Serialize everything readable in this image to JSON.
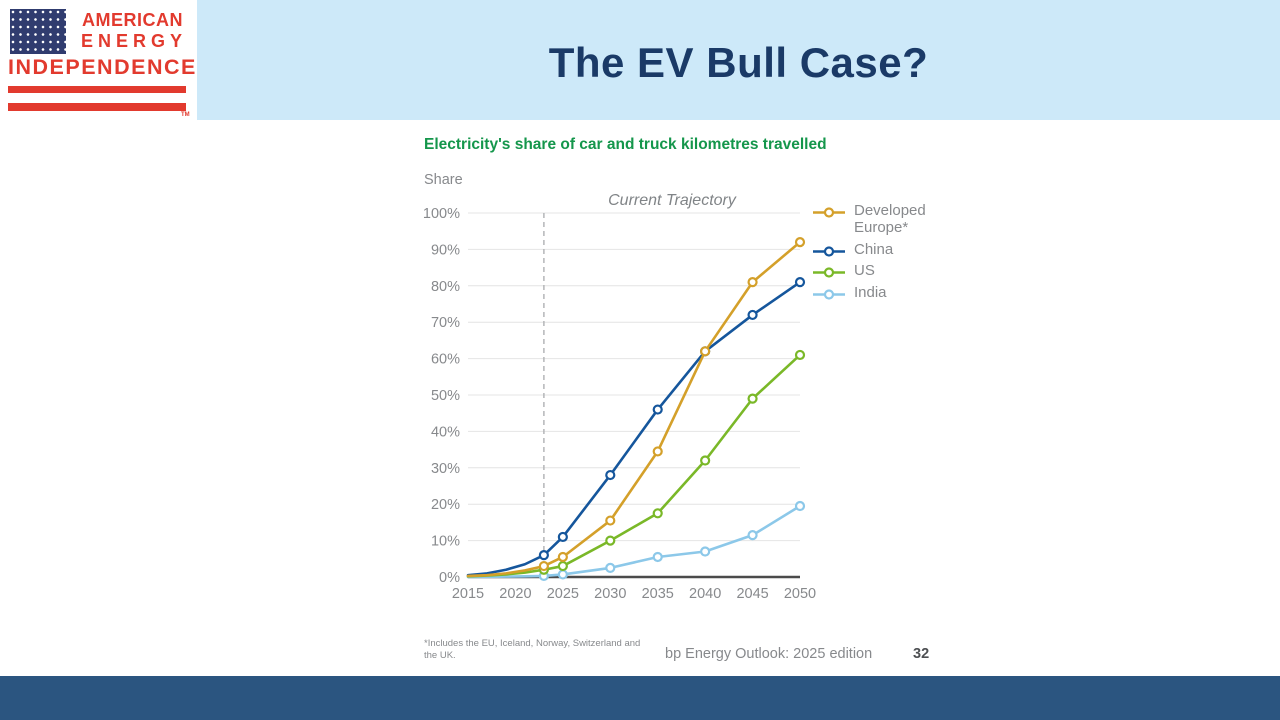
{
  "logo": {
    "line1": "AMERICAN",
    "line2": "ENERGY",
    "line3": "INDEPENDENCE",
    "tm": "TM",
    "red": "#E23A2E",
    "flag_navy": "#303C6F"
  },
  "header": {
    "title": "The EV Bull Case?",
    "background": "#CDE9F9",
    "title_color": "#1A3A67"
  },
  "chart_data": {
    "type": "line",
    "title": "Electricity's share of car and truck kilometres travelled",
    "title_color": "#14964B",
    "ylabel": "Share",
    "annotation": "Current Trajectory",
    "xlim": [
      2015,
      2050
    ],
    "ylim": [
      0,
      100
    ],
    "x_ticks": [
      2015,
      2020,
      2025,
      2030,
      2035,
      2040,
      2045,
      2050
    ],
    "y_ticks_percent": [
      0,
      10,
      20,
      30,
      40,
      50,
      60,
      70,
      80,
      90,
      100
    ],
    "grid": true,
    "legend_position": "right",
    "projection_start_year": 2023,
    "marker_years": [
      2023,
      2025,
      2030,
      2035,
      2040,
      2045,
      2050
    ],
    "series": [
      {
        "name": "Developed Europe*",
        "color": "#D4A02A",
        "x": [
          2015,
          2017,
          2019,
          2021,
          2023,
          2025,
          2030,
          2035,
          2040,
          2045,
          2050
        ],
        "y": [
          0.3,
          0.5,
          1,
          1.8,
          3,
          5.5,
          15.5,
          34.5,
          62,
          81,
          92
        ]
      },
      {
        "name": "China",
        "color": "#15569C",
        "x": [
          2015,
          2017,
          2019,
          2021,
          2023,
          2025,
          2030,
          2035,
          2040,
          2045,
          2050
        ],
        "y": [
          0.5,
          1,
          2,
          3.5,
          6,
          11,
          28,
          46,
          62,
          72,
          81
        ]
      },
      {
        "name": "US",
        "color": "#7AB828",
        "x": [
          2015,
          2017,
          2019,
          2021,
          2023,
          2025,
          2030,
          2035,
          2040,
          2045,
          2050
        ],
        "y": [
          0.2,
          0.4,
          0.7,
          1.2,
          2,
          3,
          10,
          17.5,
          32,
          49,
          61
        ]
      },
      {
        "name": "India",
        "color": "#8CC8E9",
        "x": [
          2015,
          2017,
          2019,
          2021,
          2023,
          2025,
          2030,
          2035,
          2040,
          2045,
          2050
        ],
        "y": [
          0,
          0.05,
          0.1,
          0.2,
          0.3,
          0.7,
          2.5,
          5.5,
          7,
          11.5,
          19.5
        ]
      }
    ]
  },
  "footer": {
    "footnote": "*Includes the EU, Iceland, Norway, Switzerland and the UK.",
    "source": "bp Energy Outlook: 2025 edition",
    "page": "32"
  }
}
